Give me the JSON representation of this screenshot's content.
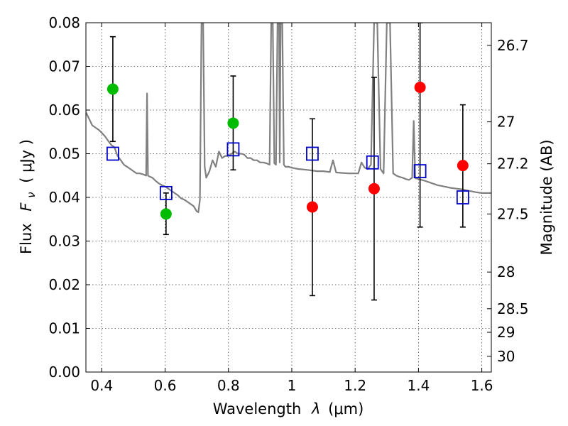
{
  "chart_data": {
    "type": "scatter",
    "title": "",
    "xlabel_prefix": "Wavelength",
    "xlabel_symbol": "λ",
    "xlabel_unit": "(μm)",
    "ylabel_prefix": "Flux",
    "ylabel_symbol": "F",
    "ylabel_subscript": "ν",
    "ylabel_unit": "( μJy )",
    "y2label": "Magnitude (AB)",
    "xlim": [
      0.35,
      1.63
    ],
    "ylim": [
      0.0,
      0.08
    ],
    "grid": true,
    "x_ticks": [
      "0.4",
      "0.6",
      "0.8",
      "1",
      "1.2",
      "1.4",
      "1.6"
    ],
    "x_tick_values": [
      0.4,
      0.6,
      0.8,
      1.0,
      1.2,
      1.4,
      1.6
    ],
    "y_ticks": [
      "0.00",
      "0.01",
      "0.02",
      "0.03",
      "0.04",
      "0.05",
      "0.06",
      "0.07",
      "0.08"
    ],
    "y_tick_values": [
      0.0,
      0.01,
      0.02,
      0.03,
      0.04,
      0.05,
      0.06,
      0.07,
      0.08
    ],
    "y2_ticks": [
      {
        "label": "26.7",
        "flux": 0.0748
      },
      {
        "label": "27",
        "flux": 0.0573
      },
      {
        "label": "27.2",
        "flux": 0.0477
      },
      {
        "label": "27.5",
        "flux": 0.0362
      },
      {
        "label": "28",
        "flux": 0.0229
      },
      {
        "label": "28.5",
        "flux": 0.0145
      },
      {
        "label": "29",
        "flux": 0.0091
      },
      {
        "label": "30",
        "flux": 0.0036
      }
    ],
    "series": [
      {
        "kind": "spectrum",
        "color": "#808080",
        "points": [
          [
            0.35,
            0.0595
          ],
          [
            0.36,
            0.058
          ],
          [
            0.37,
            0.0565
          ],
          [
            0.38,
            0.056
          ],
          [
            0.39,
            0.0555
          ],
          [
            0.4,
            0.0548
          ],
          [
            0.41,
            0.054
          ],
          [
            0.42,
            0.053
          ],
          [
            0.43,
            0.052
          ],
          [
            0.44,
            0.0515
          ],
          [
            0.45,
            0.0495
          ],
          [
            0.46,
            0.0485
          ],
          [
            0.47,
            0.0475
          ],
          [
            0.48,
            0.047
          ],
          [
            0.49,
            0.0465
          ],
          [
            0.5,
            0.046
          ],
          [
            0.51,
            0.0455
          ],
          [
            0.52,
            0.0455
          ],
          [
            0.53,
            0.0453
          ],
          [
            0.54,
            0.045
          ],
          [
            0.543,
            0.0638
          ],
          [
            0.546,
            0.045
          ],
          [
            0.55,
            0.0448
          ],
          [
            0.56,
            0.0445
          ],
          [
            0.57,
            0.0438
          ],
          [
            0.58,
            0.0432
          ],
          [
            0.59,
            0.0428
          ],
          [
            0.6,
            0.0425
          ],
          [
            0.61,
            0.042
          ],
          [
            0.62,
            0.0415
          ],
          [
            0.63,
            0.041
          ],
          [
            0.64,
            0.0405
          ],
          [
            0.65,
            0.0398
          ],
          [
            0.66,
            0.0395
          ],
          [
            0.67,
            0.039
          ],
          [
            0.68,
            0.0385
          ],
          [
            0.69,
            0.038
          ],
          [
            0.7,
            0.0368
          ],
          [
            0.705,
            0.0366
          ],
          [
            0.71,
            0.0395
          ],
          [
            0.715,
            0.08
          ],
          [
            0.72,
            0.08
          ],
          [
            0.725,
            0.047
          ],
          [
            0.73,
            0.0445
          ],
          [
            0.74,
            0.046
          ],
          [
            0.75,
            0.0485
          ],
          [
            0.76,
            0.047
          ],
          [
            0.77,
            0.0505
          ],
          [
            0.78,
            0.049
          ],
          [
            0.79,
            0.0495
          ],
          [
            0.8,
            0.0495
          ],
          [
            0.81,
            0.05
          ],
          [
            0.82,
            0.0505
          ],
          [
            0.83,
            0.05
          ],
          [
            0.84,
            0.05
          ],
          [
            0.85,
            0.0498
          ],
          [
            0.86,
            0.049
          ],
          [
            0.87,
            0.049
          ],
          [
            0.88,
            0.0485
          ],
          [
            0.89,
            0.0485
          ],
          [
            0.9,
            0.048
          ],
          [
            0.91,
            0.048
          ],
          [
            0.92,
            0.0478
          ],
          [
            0.93,
            0.0475
          ],
          [
            0.935,
            0.08
          ],
          [
            0.94,
            0.08
          ],
          [
            0.945,
            0.0478
          ],
          [
            0.95,
            0.0475
          ],
          [
            0.955,
            0.08
          ],
          [
            0.96,
            0.08
          ],
          [
            0.962,
            0.048
          ],
          [
            0.965,
            0.08
          ],
          [
            0.97,
            0.08
          ],
          [
            0.975,
            0.0475
          ],
          [
            0.98,
            0.047
          ],
          [
            0.99,
            0.047
          ],
          [
            1.0,
            0.0468
          ],
          [
            1.02,
            0.0465
          ],
          [
            1.05,
            0.0463
          ],
          [
            1.08,
            0.046
          ],
          [
            1.1,
            0.046
          ],
          [
            1.12,
            0.0458
          ],
          [
            1.13,
            0.0485
          ],
          [
            1.14,
            0.0457
          ],
          [
            1.16,
            0.0456
          ],
          [
            1.18,
            0.0455
          ],
          [
            1.2,
            0.0455
          ],
          [
            1.21,
            0.0455
          ],
          [
            1.22,
            0.048
          ],
          [
            1.23,
            0.0468
          ],
          [
            1.24,
            0.0465
          ],
          [
            1.25,
            0.0475
          ],
          [
            1.26,
            0.08
          ],
          [
            1.27,
            0.08
          ],
          [
            1.28,
            0.0465
          ],
          [
            1.29,
            0.0455
          ],
          [
            1.3,
            0.08
          ],
          [
            1.31,
            0.08
          ],
          [
            1.32,
            0.0455
          ],
          [
            1.33,
            0.045
          ],
          [
            1.34,
            0.0447
          ],
          [
            1.35,
            0.0445
          ],
          [
            1.36,
            0.0442
          ],
          [
            1.37,
            0.044
          ],
          [
            1.38,
            0.0445
          ],
          [
            1.385,
            0.0575
          ],
          [
            1.39,
            0.0444
          ],
          [
            1.4,
            0.0442
          ],
          [
            1.42,
            0.0438
          ],
          [
            1.44,
            0.0433
          ],
          [
            1.46,
            0.0428
          ],
          [
            1.48,
            0.0425
          ],
          [
            1.5,
            0.0422
          ],
          [
            1.52,
            0.042
          ],
          [
            1.54,
            0.0418
          ],
          [
            1.56,
            0.0415
          ],
          [
            1.58,
            0.0412
          ],
          [
            1.6,
            0.041
          ],
          [
            1.62,
            0.041
          ],
          [
            1.63,
            0.041
          ]
        ]
      },
      {
        "kind": "model-squares",
        "color": "#0000cc",
        "points": [
          [
            0.435,
            0.05
          ],
          [
            0.603,
            0.041
          ],
          [
            0.815,
            0.051
          ],
          [
            1.065,
            0.05
          ],
          [
            1.255,
            0.048
          ],
          [
            1.405,
            0.046
          ],
          [
            1.54,
            0.04
          ]
        ]
      },
      {
        "kind": "green-points",
        "color": "#00bb00",
        "points": [
          [
            0.435,
            0.0648
          ],
          [
            0.603,
            0.0362
          ],
          [
            0.815,
            0.057
          ]
        ],
        "errors": [
          [
            0.0528,
            0.0768
          ],
          [
            0.0315,
            0.041
          ],
          [
            0.0463,
            0.0678
          ]
        ]
      },
      {
        "kind": "red-points",
        "color": "#ff0000",
        "points": [
          [
            1.065,
            0.0378
          ],
          [
            1.26,
            0.042
          ],
          [
            1.405,
            0.0652
          ],
          [
            1.54,
            0.0473
          ]
        ],
        "errors": [
          [
            0.0175,
            0.058
          ],
          [
            0.0165,
            0.0675
          ],
          [
            0.0332,
            0.08
          ],
          [
            0.0332,
            0.0612
          ]
        ]
      }
    ]
  }
}
